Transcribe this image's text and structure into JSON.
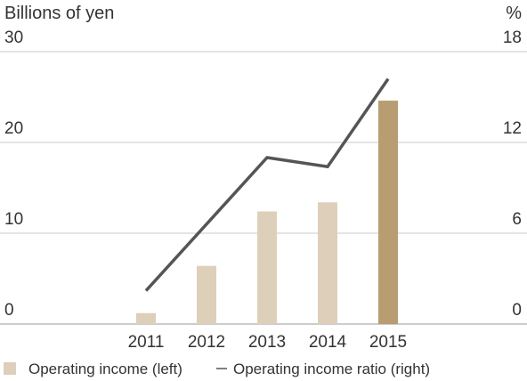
{
  "chart_data": {
    "type": "bar",
    "left_axis_unit": "Billions of yen",
    "right_axis_unit": "%",
    "categories": [
      "2011",
      "2012",
      "2013",
      "2014",
      "2015"
    ],
    "left_axis_ticks": [
      "0",
      "10",
      "20",
      "30"
    ],
    "right_axis_ticks": [
      "0",
      "6",
      "12",
      "18"
    ],
    "ylim_left": [
      0,
      30
    ],
    "ylim_right": [
      0,
      18
    ],
    "grid": true,
    "legend_position": "bottom-left",
    "series": [
      {
        "name": "Operating income (left)",
        "type": "bar",
        "axis": "left",
        "values": [
          1.2,
          6.4,
          12.4,
          13.4,
          24.6
        ],
        "color": "#ddcfba",
        "highlight_color": "#b89d72",
        "highlight_index": 4
      },
      {
        "name": "Operating income ratio (right)",
        "type": "line",
        "axis": "right",
        "values": [
          2.2,
          6.6,
          11.0,
          10.4,
          16.2
        ],
        "color": "#555555"
      }
    ]
  }
}
